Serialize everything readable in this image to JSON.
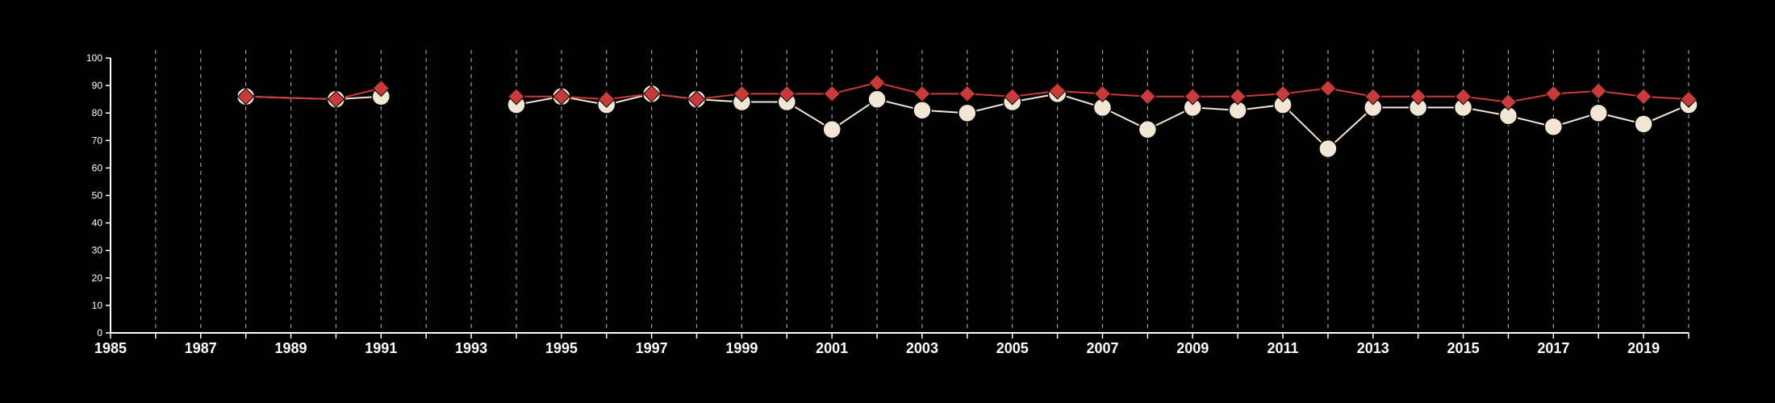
{
  "chart_data": {
    "type": "line",
    "title": "",
    "xlabel": "",
    "ylabel": "",
    "xlim": [
      1985,
      2020
    ],
    "ylim": [
      0,
      100
    ],
    "y_ticks": [
      "0",
      "10",
      "20",
      "30",
      "40",
      "50",
      "60",
      "70",
      "80",
      "90",
      "100"
    ],
    "x_ticks": [
      "1985",
      "1987",
      "1989",
      "1991",
      "1993",
      "1995",
      "1997",
      "1999",
      "2001",
      "2003",
      "2005",
      "2007",
      "2009",
      "2011",
      "2013",
      "2015",
      "2017",
      "2019"
    ],
    "grid": "vertical dashed lines at each year",
    "legend": "none",
    "series": [
      {
        "marker": "circle",
        "color": "#f3e6d4",
        "points": [
          [
            1988,
            86
          ],
          [
            1990,
            85
          ],
          [
            1991,
            86
          ],
          [
            1994,
            83
          ],
          [
            1995,
            86
          ],
          [
            1996,
            83
          ],
          [
            1997,
            87
          ],
          [
            1998,
            85
          ],
          [
            1999,
            84
          ],
          [
            2000,
            84
          ],
          [
            2001,
            74
          ],
          [
            2002,
            85
          ],
          [
            2003,
            81
          ],
          [
            2004,
            80
          ],
          [
            2005,
            84
          ],
          [
            2006,
            87
          ],
          [
            2007,
            82
          ],
          [
            2008,
            74
          ],
          [
            2009,
            82
          ],
          [
            2010,
            81
          ],
          [
            2011,
            83
          ],
          [
            2012,
            67
          ],
          [
            2013,
            82
          ],
          [
            2014,
            82
          ],
          [
            2015,
            82
          ],
          [
            2016,
            79
          ],
          [
            2017,
            75
          ],
          [
            2018,
            80
          ],
          [
            2019,
            76
          ],
          [
            2020,
            83
          ]
        ]
      },
      {
        "marker": "diamond",
        "color": "#c93a3a",
        "points": [
          [
            1988,
            86
          ],
          [
            1990,
            85
          ],
          [
            1991,
            89
          ],
          [
            1994,
            86
          ],
          [
            1995,
            86
          ],
          [
            1996,
            85
          ],
          [
            1997,
            87
          ],
          [
            1998,
            85
          ],
          [
            1999,
            87
          ],
          [
            2000,
            87
          ],
          [
            2001,
            87
          ],
          [
            2002,
            91
          ],
          [
            2003,
            87
          ],
          [
            2004,
            87
          ],
          [
            2005,
            86
          ],
          [
            2006,
            88
          ],
          [
            2007,
            87
          ],
          [
            2008,
            86
          ],
          [
            2009,
            86
          ],
          [
            2010,
            86
          ],
          [
            2011,
            87
          ],
          [
            2012,
            89
          ],
          [
            2013,
            86
          ],
          [
            2014,
            86
          ],
          [
            2015,
            86
          ],
          [
            2016,
            84
          ],
          [
            2017,
            87
          ],
          [
            2018,
            88
          ],
          [
            2019,
            86
          ],
          [
            2020,
            85
          ]
        ]
      }
    ]
  }
}
